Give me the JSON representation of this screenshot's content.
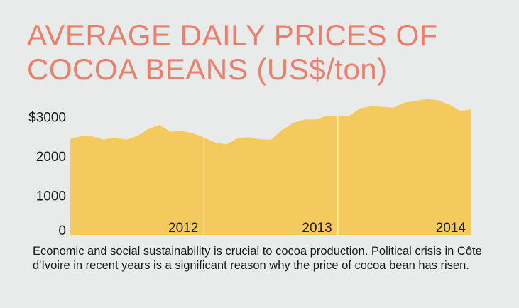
{
  "title_lines": [
    "AVERAGE DAILY PRICES OF",
    "COCOA BEANS (US$/ton)"
  ],
  "caption": "Economic and social sustainability is crucial to cocoa production. Political crisis in Côte d'Ivoire in recent years is a significant reason why the price of cocoa bean has risen.",
  "colors": {
    "title": "#ec7f6c",
    "area": "#f4c95d",
    "background": "#e8ebea",
    "text": "#1a1a1a",
    "divider": "#ffffff"
  },
  "chart_data": {
    "type": "area",
    "title": "AVERAGE DAILY PRICES OF COCOA BEANS (US$/ton)",
    "ylim": [
      0,
      3600
    ],
    "y_ticks": [
      {
        "value": 0,
        "label": "0"
      },
      {
        "value": 1000,
        "label": "1000"
      },
      {
        "value": 2000,
        "label": "2000"
      },
      {
        "value": 3000,
        "label": "$3000"
      }
    ],
    "grid": false,
    "segments": [
      {
        "label": "2012",
        "values": [
          2440,
          2510,
          2500,
          2420,
          2470,
          2420,
          2510,
          2690,
          2790,
          2620,
          2640,
          2580,
          2470
        ]
      },
      {
        "label": "2013",
        "values": [
          2470,
          2350,
          2300,
          2450,
          2480,
          2430,
          2420,
          2660,
          2840,
          2930,
          2930,
          3020,
          3020
        ]
      },
      {
        "label": "2014",
        "values": [
          3020,
          3010,
          3210,
          3270,
          3250,
          3230,
          3360,
          3400,
          3450,
          3420,
          3310,
          3150,
          3180
        ]
      }
    ]
  }
}
